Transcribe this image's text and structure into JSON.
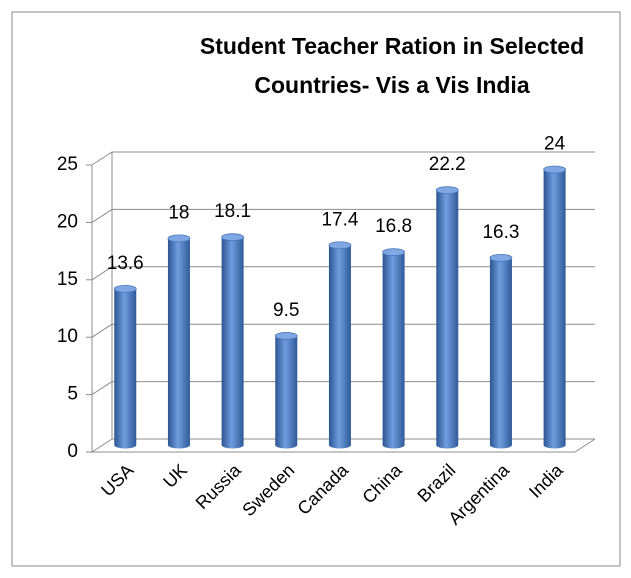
{
  "chart_data": {
    "type": "bar",
    "title": [
      "Student Teacher  Ration in Selected",
      "Countries- Vis a Vis India"
    ],
    "categories": [
      "USA",
      "UK",
      "Russia",
      "Sweden",
      "Canada",
      "China",
      "Brazil",
      "Argentina",
      "India"
    ],
    "values": [
      13.6,
      18,
      18.1,
      9.5,
      17.4,
      16.8,
      22.2,
      16.3,
      24
    ],
    "color": "#4f81bd",
    "ylim": [
      0,
      25
    ],
    "yticks": [
      0,
      5,
      10,
      15,
      20,
      25
    ],
    "grid": true
  }
}
